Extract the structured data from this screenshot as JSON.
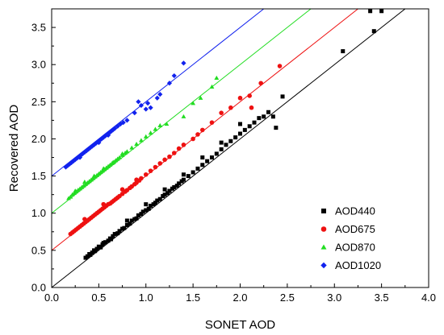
{
  "chart_data": {
    "type": "scatter",
    "title": "",
    "xlabel": "SONET AOD",
    "ylabel": "Recovered AOD",
    "xlim": [
      0.0,
      4.0
    ],
    "ylim": [
      0.0,
      3.75
    ],
    "grid": false,
    "legend_position": "bottom-right",
    "x_ticks": [
      "0.0",
      "0.5",
      "1.0",
      "1.5",
      "2.0",
      "2.5",
      "3.0",
      "3.5",
      "4.0"
    ],
    "y_ticks": [
      "0.0",
      "0.5",
      "1.0",
      "1.5",
      "2.0",
      "2.5",
      "3.0",
      "3.5"
    ],
    "series": [
      {
        "name": "AOD440",
        "color": "#000000",
        "marker": "square",
        "fit": {
          "intercept": 0.0,
          "slope": 1.0
        },
        "points": [
          [
            0.36,
            0.4
          ],
          [
            0.38,
            0.42
          ],
          [
            0.4,
            0.45
          ],
          [
            0.41,
            0.44
          ],
          [
            0.43,
            0.47
          ],
          [
            0.45,
            0.5
          ],
          [
            0.46,
            0.49
          ],
          [
            0.48,
            0.52
          ],
          [
            0.5,
            0.55
          ],
          [
            0.52,
            0.54
          ],
          [
            0.54,
            0.58
          ],
          [
            0.55,
            0.6
          ],
          [
            0.57,
            0.61
          ],
          [
            0.6,
            0.63
          ],
          [
            0.62,
            0.66
          ],
          [
            0.63,
            0.65
          ],
          [
            0.65,
            0.69
          ],
          [
            0.67,
            0.72
          ],
          [
            0.7,
            0.73
          ],
          [
            0.72,
            0.76
          ],
          [
            0.75,
            0.79
          ],
          [
            0.77,
            0.8
          ],
          [
            0.8,
            0.84
          ],
          [
            0.83,
            0.86
          ],
          [
            0.85,
            0.9
          ],
          [
            0.88,
            0.92
          ],
          [
            0.9,
            0.93
          ],
          [
            0.92,
            0.97
          ],
          [
            0.95,
            0.99
          ],
          [
            0.97,
            1.02
          ],
          [
            1.0,
            1.04
          ],
          [
            1.03,
            1.06
          ],
          [
            1.05,
            1.1
          ],
          [
            1.08,
            1.12
          ],
          [
            1.1,
            1.14
          ],
          [
            1.12,
            1.17
          ],
          [
            1.15,
            1.19
          ],
          [
            1.18,
            1.23
          ],
          [
            1.2,
            1.25
          ],
          [
            1.23,
            1.27
          ],
          [
            1.25,
            1.3
          ],
          [
            1.28,
            1.33
          ],
          [
            1.3,
            1.35
          ],
          [
            1.33,
            1.37
          ],
          [
            1.35,
            1.4
          ],
          [
            1.38,
            1.43
          ],
          [
            1.4,
            1.45
          ],
          [
            1.45,
            1.5
          ],
          [
            1.5,
            1.55
          ],
          [
            1.55,
            1.6
          ],
          [
            1.6,
            1.65
          ],
          [
            1.65,
            1.7
          ],
          [
            1.7,
            1.75
          ],
          [
            1.75,
            1.8
          ],
          [
            1.8,
            1.86
          ],
          [
            1.85,
            1.92
          ],
          [
            1.9,
            1.97
          ],
          [
            1.95,
            2.02
          ],
          [
            2.0,
            2.07
          ],
          [
            2.05,
            2.12
          ],
          [
            2.1,
            2.17
          ],
          [
            2.15,
            2.22
          ],
          [
            2.2,
            2.28
          ],
          [
            2.25,
            2.3
          ],
          [
            2.3,
            2.36
          ],
          [
            2.35,
            2.3
          ],
          [
            2.38,
            2.15
          ],
          [
            2.45,
            2.57
          ],
          [
            0.8,
            0.9
          ],
          [
            1.0,
            1.12
          ],
          [
            1.2,
            1.32
          ],
          [
            1.4,
            1.52
          ],
          [
            1.6,
            1.75
          ],
          [
            1.8,
            1.95
          ],
          [
            2.0,
            2.2
          ],
          [
            3.09,
            3.18
          ],
          [
            3.38,
            3.72
          ],
          [
            3.42,
            3.45
          ],
          [
            3.5,
            3.72
          ]
        ]
      },
      {
        "name": "AOD675",
        "color": "#ee1111",
        "marker": "circle",
        "fit": {
          "intercept": 0.5,
          "slope": 1.0
        },
        "points": [
          [
            0.2,
            0.72
          ],
          [
            0.22,
            0.74
          ],
          [
            0.24,
            0.76
          ],
          [
            0.26,
            0.78
          ],
          [
            0.28,
            0.8
          ],
          [
            0.3,
            0.82
          ],
          [
            0.32,
            0.84
          ],
          [
            0.34,
            0.86
          ],
          [
            0.36,
            0.88
          ],
          [
            0.38,
            0.9
          ],
          [
            0.4,
            0.92
          ],
          [
            0.42,
            0.94
          ],
          [
            0.44,
            0.96
          ],
          [
            0.46,
            0.98
          ],
          [
            0.48,
            1.0
          ],
          [
            0.5,
            1.02
          ],
          [
            0.52,
            1.04
          ],
          [
            0.54,
            1.06
          ],
          [
            0.56,
            1.08
          ],
          [
            0.58,
            1.1
          ],
          [
            0.6,
            1.12
          ],
          [
            0.62,
            1.13
          ],
          [
            0.64,
            1.15
          ],
          [
            0.66,
            1.17
          ],
          [
            0.68,
            1.19
          ],
          [
            0.7,
            1.21
          ],
          [
            0.72,
            1.23
          ],
          [
            0.75,
            1.26
          ],
          [
            0.78,
            1.29
          ],
          [
            0.8,
            1.31
          ],
          [
            0.83,
            1.34
          ],
          [
            0.85,
            1.36
          ],
          [
            0.88,
            1.39
          ],
          [
            0.9,
            1.41
          ],
          [
            0.93,
            1.44
          ],
          [
            0.95,
            1.47
          ],
          [
            1.0,
            1.52
          ],
          [
            1.05,
            1.57
          ],
          [
            1.1,
            1.62
          ],
          [
            1.15,
            1.67
          ],
          [
            1.2,
            1.72
          ],
          [
            1.25,
            1.76
          ],
          [
            1.3,
            1.81
          ],
          [
            1.35,
            1.87
          ],
          [
            1.4,
            1.92
          ],
          [
            1.5,
            2.0
          ],
          [
            1.55,
            2.06
          ],
          [
            1.6,
            2.12
          ],
          [
            1.7,
            2.22
          ],
          [
            1.8,
            2.35
          ],
          [
            1.9,
            2.42
          ],
          [
            2.0,
            2.55
          ],
          [
            2.1,
            2.58
          ],
          [
            2.12,
            2.42
          ],
          [
            2.22,
            2.75
          ],
          [
            2.42,
            2.98
          ],
          [
            0.35,
            0.92
          ],
          [
            0.55,
            1.12
          ],
          [
            0.75,
            1.32
          ],
          [
            0.9,
            1.45
          ]
        ]
      },
      {
        "name": "AOD870",
        "color": "#22dd22",
        "marker": "triangle",
        "fit": {
          "intercept": 1.0,
          "slope": 1.0
        },
        "points": [
          [
            0.18,
            1.2
          ],
          [
            0.2,
            1.22
          ],
          [
            0.22,
            1.25
          ],
          [
            0.24,
            1.27
          ],
          [
            0.26,
            1.29
          ],
          [
            0.28,
            1.31
          ],
          [
            0.3,
            1.33
          ],
          [
            0.32,
            1.35
          ],
          [
            0.34,
            1.37
          ],
          [
            0.36,
            1.39
          ],
          [
            0.38,
            1.41
          ],
          [
            0.4,
            1.43
          ],
          [
            0.42,
            1.45
          ],
          [
            0.44,
            1.47
          ],
          [
            0.46,
            1.49
          ],
          [
            0.48,
            1.51
          ],
          [
            0.5,
            1.53
          ],
          [
            0.52,
            1.55
          ],
          [
            0.54,
            1.57
          ],
          [
            0.56,
            1.59
          ],
          [
            0.58,
            1.61
          ],
          [
            0.6,
            1.63
          ],
          [
            0.62,
            1.65
          ],
          [
            0.64,
            1.67
          ],
          [
            0.66,
            1.69
          ],
          [
            0.68,
            1.71
          ],
          [
            0.7,
            1.73
          ],
          [
            0.72,
            1.75
          ],
          [
            0.75,
            1.78
          ],
          [
            0.78,
            1.81
          ],
          [
            0.8,
            1.83
          ],
          [
            0.85,
            1.88
          ],
          [
            0.9,
            1.93
          ],
          [
            0.95,
            1.98
          ],
          [
            1.0,
            2.03
          ],
          [
            1.05,
            2.08
          ],
          [
            1.1,
            2.13
          ],
          [
            1.15,
            2.18
          ],
          [
            1.22,
            2.2
          ],
          [
            1.4,
            2.3
          ],
          [
            1.5,
            2.48
          ],
          [
            1.58,
            2.55
          ],
          [
            1.7,
            2.7
          ],
          [
            1.75,
            2.82
          ],
          [
            0.35,
            1.42
          ],
          [
            0.55,
            1.6
          ],
          [
            0.75,
            1.8
          ],
          [
            0.25,
            1.3
          ],
          [
            0.45,
            1.5
          ],
          [
            0.65,
            1.68
          ]
        ]
      },
      {
        "name": "AOD1020",
        "color": "#1122ee",
        "marker": "diamond",
        "fit": {
          "intercept": 1.5,
          "slope": 1.0
        },
        "points": [
          [
            0.15,
            1.62
          ],
          [
            0.17,
            1.64
          ],
          [
            0.19,
            1.66
          ],
          [
            0.21,
            1.68
          ],
          [
            0.23,
            1.7
          ],
          [
            0.25,
            1.72
          ],
          [
            0.27,
            1.74
          ],
          [
            0.29,
            1.76
          ],
          [
            0.31,
            1.78
          ],
          [
            0.33,
            1.8
          ],
          [
            0.35,
            1.82
          ],
          [
            0.37,
            1.84
          ],
          [
            0.39,
            1.86
          ],
          [
            0.41,
            1.88
          ],
          [
            0.43,
            1.9
          ],
          [
            0.45,
            1.92
          ],
          [
            0.47,
            1.94
          ],
          [
            0.49,
            1.96
          ],
          [
            0.51,
            1.98
          ],
          [
            0.53,
            2.0
          ],
          [
            0.55,
            2.02
          ],
          [
            0.57,
            2.04
          ],
          [
            0.59,
            2.06
          ],
          [
            0.61,
            2.08
          ],
          [
            0.63,
            2.1
          ],
          [
            0.65,
            2.12
          ],
          [
            0.67,
            2.14
          ],
          [
            0.7,
            2.17
          ],
          [
            0.73,
            2.2
          ],
          [
            0.76,
            2.22
          ],
          [
            0.8,
            2.25
          ],
          [
            0.88,
            2.35
          ],
          [
            0.92,
            2.5
          ],
          [
            0.95,
            2.45
          ],
          [
            1.0,
            2.4
          ],
          [
            1.02,
            2.48
          ],
          [
            1.12,
            2.55
          ],
          [
            1.15,
            2.6
          ],
          [
            1.25,
            2.75
          ],
          [
            1.4,
            3.02
          ],
          [
            1.3,
            2.85
          ],
          [
            1.05,
            2.42
          ],
          [
            0.3,
            1.75
          ],
          [
            0.5,
            1.95
          ],
          [
            0.6,
            2.05
          ]
        ]
      }
    ]
  }
}
